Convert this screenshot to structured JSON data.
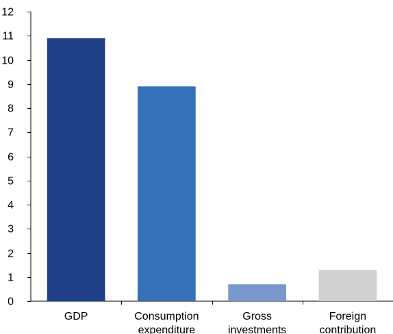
{
  "chart_data": {
    "type": "bar",
    "categories": [
      [
        "GDP"
      ],
      [
        "Consumption",
        "expenditure"
      ],
      [
        "Gross",
        "investments"
      ],
      [
        "Foreign",
        "contribution"
      ]
    ],
    "values": [
      10.9,
      8.9,
      0.7,
      1.3
    ],
    "colors": [
      "#1f3f87",
      "#3570b8",
      "#7898cc",
      "#d0d0d0"
    ],
    "yticks": [
      0,
      1,
      2,
      3,
      4,
      5,
      6,
      7,
      8,
      9,
      10,
      11,
      12
    ],
    "ylim": [
      0,
      12
    ],
    "grid": false,
    "legend": "none",
    "title": "",
    "xlabel": "",
    "ylabel": ""
  }
}
